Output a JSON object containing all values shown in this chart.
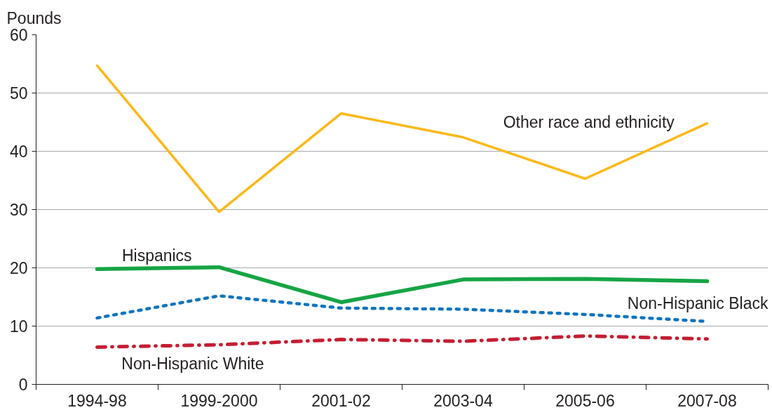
{
  "chart_data": {
    "type": "line",
    "ylabel": "Pounds",
    "categories": [
      "1994-98",
      "1999-2000",
      "2001-02",
      "2003-04",
      "2005-06",
      "2007-08"
    ],
    "ylim": [
      0,
      60
    ],
    "yticks": [
      0,
      10,
      20,
      30,
      40,
      50,
      60
    ],
    "grid": "y",
    "series": [
      {
        "name": "Other race and ethnicity",
        "color": "#fbb818",
        "line_style": "solid",
        "values": [
          54.7,
          29.6,
          46.5,
          42.4,
          35.3,
          44.8
        ]
      },
      {
        "name": "Hispanics",
        "color": "#16a445",
        "line_style": "solid",
        "values": [
          19.8,
          20.1,
          14.1,
          18.0,
          18.1,
          17.7
        ]
      },
      {
        "name": "Non-Hispanic Black",
        "color": "#0f74c0",
        "line_style": "dotted",
        "values": [
          11.4,
          15.2,
          13.1,
          12.9,
          12.0,
          10.8
        ]
      },
      {
        "name": "Non-Hispanic White",
        "color": "#c41e32",
        "line_style": "dashed",
        "values": [
          6.4,
          6.8,
          7.7,
          7.4,
          8.3,
          7.8
        ]
      }
    ]
  }
}
